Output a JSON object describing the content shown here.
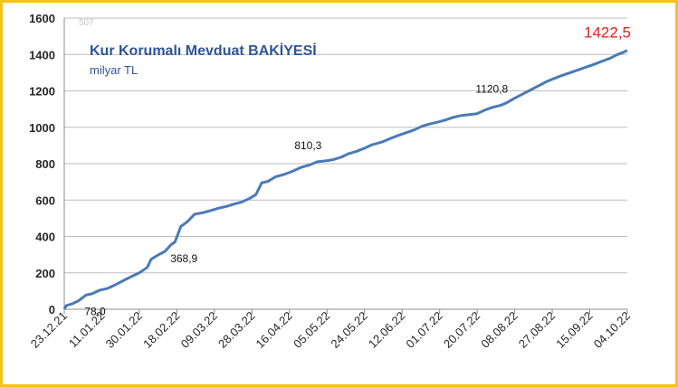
{
  "chart_data": {
    "type": "line",
    "title": "Kur Korumalı Mevduat BAKİYESİ",
    "subtitle": "milyar TL",
    "ylim": [
      0,
      1600
    ],
    "yticks": [
      0,
      200,
      400,
      600,
      800,
      1000,
      1200,
      1400,
      1600
    ],
    "xtick_labels": [
      "23.12.21",
      "11.01.22",
      "30.01.22",
      "18.02.22",
      "09.03.22",
      "28.03.22",
      "16.04.22",
      "05.05.22",
      "24.05.22",
      "12.06.22",
      "01.07.22",
      "20.07.22",
      "08.08.22",
      "27.08.22",
      "15.09.22",
      "04.10.22"
    ],
    "x_start": "2021-12-23",
    "x_end": "2022-10-04",
    "grid": "horizontal",
    "faint_label": "507",
    "series": [
      {
        "color": "#4a7ab7",
        "points": [
          [
            "2021-12-23",
            0
          ],
          [
            "2021-12-24",
            20
          ],
          [
            "2021-12-27",
            30
          ],
          [
            "2021-12-30",
            45
          ],
          [
            "2022-01-03",
            78
          ],
          [
            "2022-01-06",
            85
          ],
          [
            "2022-01-10",
            105
          ],
          [
            "2022-01-14",
            115
          ],
          [
            "2022-01-18",
            135
          ],
          [
            "2022-01-22",
            158
          ],
          [
            "2022-01-26",
            180
          ],
          [
            "2022-01-30",
            200
          ],
          [
            "2022-02-03",
            230
          ],
          [
            "2022-02-05",
            275
          ],
          [
            "2022-02-08",
            295
          ],
          [
            "2022-02-12",
            318
          ],
          [
            "2022-02-15",
            355
          ],
          [
            "2022-02-17",
            368.9
          ],
          [
            "2022-02-20",
            455
          ],
          [
            "2022-02-23",
            478
          ],
          [
            "2022-02-27",
            522
          ],
          [
            "2022-03-03",
            530
          ],
          [
            "2022-03-07",
            542
          ],
          [
            "2022-03-11",
            555
          ],
          [
            "2022-03-15",
            565
          ],
          [
            "2022-03-19",
            578
          ],
          [
            "2022-03-23",
            590
          ],
          [
            "2022-03-27",
            610
          ],
          [
            "2022-03-30",
            630
          ],
          [
            "2022-04-02",
            695
          ],
          [
            "2022-04-05",
            702
          ],
          [
            "2022-04-09",
            728
          ],
          [
            "2022-04-13",
            740
          ],
          [
            "2022-04-17",
            756
          ],
          [
            "2022-04-22",
            780
          ],
          [
            "2022-04-26",
            792
          ],
          [
            "2022-04-30",
            810.3
          ],
          [
            "2022-05-04",
            815
          ],
          [
            "2022-05-08",
            822
          ],
          [
            "2022-05-12",
            835
          ],
          [
            "2022-05-16",
            855
          ],
          [
            "2022-05-20",
            868
          ],
          [
            "2022-05-24",
            885
          ],
          [
            "2022-05-28",
            905
          ],
          [
            "2022-06-02",
            920
          ],
          [
            "2022-06-06",
            938
          ],
          [
            "2022-06-10",
            955
          ],
          [
            "2022-06-14",
            970
          ],
          [
            "2022-06-18",
            985
          ],
          [
            "2022-06-22",
            1005
          ],
          [
            "2022-06-26",
            1018
          ],
          [
            "2022-06-30",
            1028
          ],
          [
            "2022-07-04",
            1040
          ],
          [
            "2022-07-08",
            1055
          ],
          [
            "2022-07-12",
            1065
          ],
          [
            "2022-07-16",
            1070
          ],
          [
            "2022-07-20",
            1075
          ],
          [
            "2022-07-24",
            1095
          ],
          [
            "2022-07-28",
            1110
          ],
          [
            "2022-08-01",
            1120.8
          ],
          [
            "2022-08-04",
            1135
          ],
          [
            "2022-08-08",
            1160
          ],
          [
            "2022-08-12",
            1182
          ],
          [
            "2022-08-16",
            1205
          ],
          [
            "2022-08-20",
            1228
          ],
          [
            "2022-08-24",
            1250
          ],
          [
            "2022-08-28",
            1268
          ],
          [
            "2022-09-01",
            1285
          ],
          [
            "2022-09-05",
            1300
          ],
          [
            "2022-09-09",
            1315
          ],
          [
            "2022-09-13",
            1330
          ],
          [
            "2022-09-17",
            1345
          ],
          [
            "2022-09-21",
            1362
          ],
          [
            "2022-09-25",
            1378
          ],
          [
            "2022-09-29",
            1400
          ],
          [
            "2022-10-02",
            1412
          ],
          [
            "2022-10-04",
            1422.5
          ]
        ]
      }
    ],
    "annotations": [
      {
        "text": "78,0",
        "x": "2022-01-03",
        "y": 78,
        "pos": "below",
        "color": "#111111"
      },
      {
        "text": "368,9",
        "x": "2022-02-17",
        "y": 368.9,
        "pos": "below",
        "color": "#111111"
      },
      {
        "text": "810,3",
        "x": "2022-04-30",
        "y": 810.3,
        "pos": "above",
        "color": "#111111"
      },
      {
        "text": "1120,8",
        "x": "2022-08-01",
        "y": 1120.8,
        "pos": "above",
        "color": "#111111"
      },
      {
        "text": "1422,5",
        "x": "2022-10-04",
        "y": 1422.5,
        "pos": "above-left",
        "color": "#e02020"
      }
    ]
  }
}
